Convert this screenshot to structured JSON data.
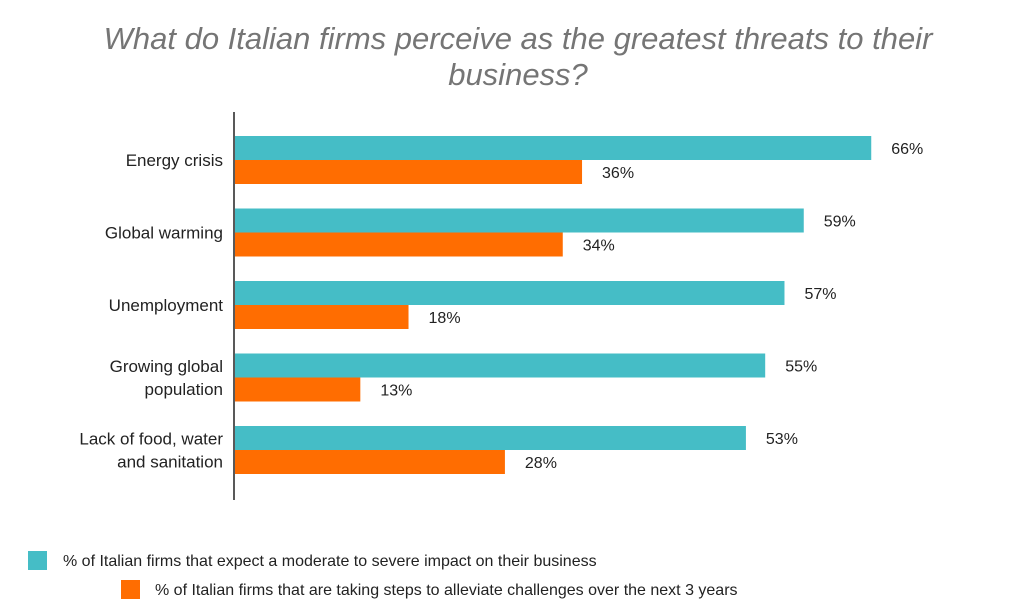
{
  "chart_data": {
    "type": "bar",
    "orientation": "horizontal",
    "title": "What do Italian firms perceive as the greatest threats to their business?",
    "title_lines": [
      "What do Italian firms perceive as the greatest threats to their",
      "business?"
    ],
    "categories": [
      "Energy crisis",
      "Global warming",
      "Unemployment",
      "Growing global population",
      "Lack of food, water and sanitation"
    ],
    "category_lines": [
      [
        "Energy crisis"
      ],
      [
        "Global warming"
      ],
      [
        "Unemployment"
      ],
      [
        "Growing global",
        "population"
      ],
      [
        "Lack of food, water",
        "and sanitation"
      ]
    ],
    "series": [
      {
        "name": "% of Italian firms that expect a moderate to severe impact on their business",
        "color": "#45bdc6",
        "values": [
          66,
          59,
          57,
          55,
          53
        ],
        "labels": [
          "66%",
          "59%",
          "57%",
          "55%",
          "53%"
        ]
      },
      {
        "name": "% of Italian firms that are taking steps to alleviate challenges over the next 3 years",
        "color": "#ff6d01",
        "values": [
          36,
          34,
          18,
          13,
          28
        ],
        "labels": [
          "36%",
          "34%",
          "18%",
          "13%",
          "28%"
        ]
      }
    ],
    "xlim": [
      0,
      75
    ],
    "grid": false,
    "legend_position": "bottom"
  }
}
